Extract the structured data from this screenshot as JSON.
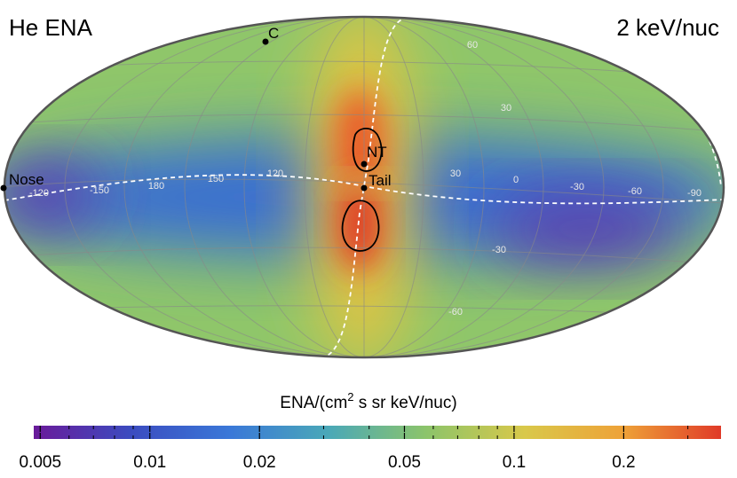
{
  "title": "He ENA",
  "energy": "2 keV/nuc",
  "points": [
    "Nose",
    "C",
    "NT",
    "Tail"
  ],
  "grid_labels": [
    "-120",
    "-150",
    "180",
    "150",
    "120",
    "30",
    "0",
    "-30",
    "-60",
    "-90",
    "30",
    "-30",
    "60",
    "-60"
  ],
  "colorbar": {
    "label": "ENA/(cm",
    "label_sup": "2",
    "label_rest": " s sr keV/nuc)",
    "log": true,
    "lim": [
      0.0048,
      0.37
    ],
    "ticks": [
      0.005,
      0.01,
      0.02,
      0.05,
      0.1,
      0.2
    ],
    "minor_ticks": [
      0.006,
      0.007,
      0.008,
      0.009,
      0.03,
      0.04,
      0.06,
      0.07,
      0.08,
      0.09,
      0.3
    ],
    "colors": [
      "#6a1b9a",
      "#3b4cc0",
      "#3a78d8",
      "#4aa8b8",
      "#8cc46a",
      "#d9c84a",
      "#eea238",
      "#e03a28"
    ]
  }
}
